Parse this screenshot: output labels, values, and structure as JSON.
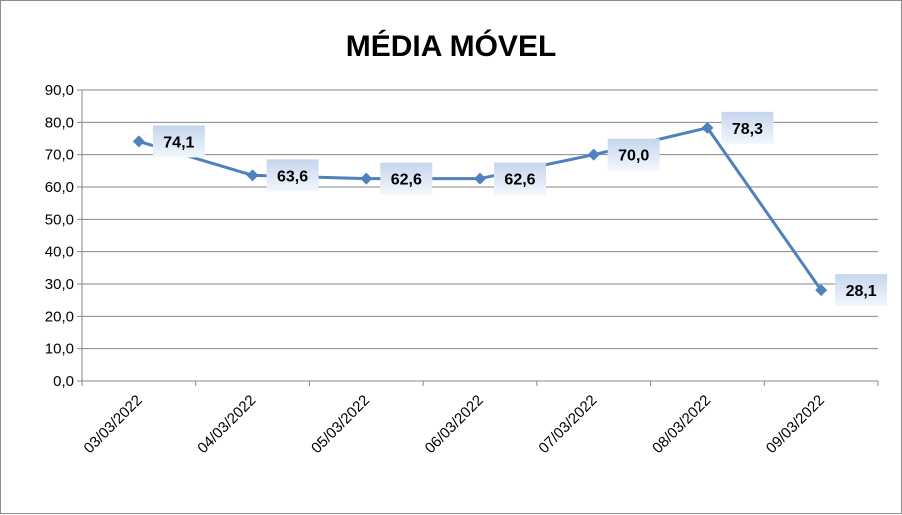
{
  "chart_data": {
    "type": "line",
    "title": "MÉDIA MÓVEL",
    "xlabel": "",
    "ylabel": "",
    "categories": [
      "03/03/2022",
      "04/03/2022",
      "05/03/2022",
      "06/03/2022",
      "07/03/2022",
      "08/03/2022",
      "09/03/2022"
    ],
    "series": [
      {
        "values": [
          74.1,
          63.6,
          62.6,
          62.6,
          70.0,
          78.3,
          28.1
        ],
        "labels": [
          "74,1",
          "63,6",
          "62,6",
          "62,6",
          "70,0",
          "78,3",
          "28,1"
        ],
        "color": "#4f81bd"
      }
    ],
    "ylim": [
      0,
      90
    ],
    "yticks": [
      "0,0",
      "10,0",
      "20,0",
      "30,0",
      "40,0",
      "50,0",
      "60,0",
      "70,0",
      "80,0",
      "90,0"
    ],
    "grid": true,
    "legend": "none",
    "marker": "diamond"
  }
}
